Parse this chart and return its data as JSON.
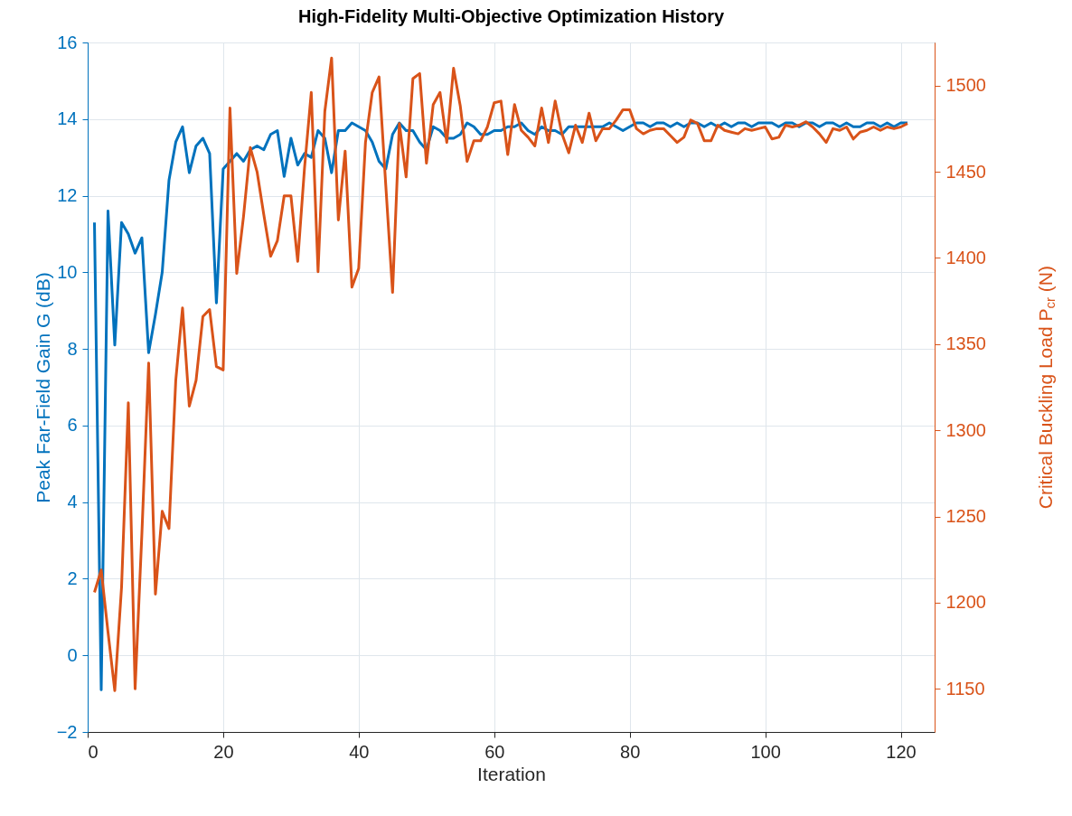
{
  "chart_data": {
    "type": "line",
    "title": "High-Fidelity Multi-Objective Optimization History",
    "xlabel": "Iteration",
    "ylabel": "Peak Far-Field Gain G (dB)",
    "y2label": "Critical Buckling Load P$_{cr}$ (N)",
    "x": [
      1,
      2,
      3,
      4,
      5,
      6,
      7,
      8,
      9,
      10,
      11,
      12,
      13,
      14,
      15,
      16,
      17,
      18,
      19,
      20,
      21,
      22,
      23,
      24,
      25,
      26,
      27,
      28,
      29,
      30,
      31,
      32,
      33,
      34,
      35,
      36,
      37,
      38,
      39,
      40,
      41,
      42,
      43,
      44,
      45,
      46,
      47,
      48,
      49,
      50,
      51,
      52,
      53,
      54,
      55,
      56,
      57,
      58,
      59,
      60,
      61,
      62,
      63,
      64,
      65,
      66,
      67,
      68,
      69,
      70,
      71,
      72,
      73,
      74,
      75,
      76,
      77,
      78,
      79,
      80,
      81,
      82,
      83,
      84,
      85,
      86,
      87,
      88,
      89,
      90,
      91,
      92,
      93,
      94,
      95,
      96,
      97,
      98,
      99,
      100,
      101,
      102,
      103,
      104,
      105,
      106,
      107,
      108,
      109,
      110,
      111,
      112,
      113,
      114,
      115,
      116,
      117,
      118,
      119,
      120,
      121
    ],
    "series": [
      {
        "color": "#0072bd",
        "values": [
          11.3,
          -0.9,
          11.6,
          8.1,
          11.3,
          11.0,
          10.5,
          10.9,
          7.9,
          8.9,
          10.0,
          12.4,
          13.4,
          13.8,
          12.6,
          13.3,
          13.5,
          13.1,
          9.2,
          12.7,
          12.9,
          13.1,
          12.9,
          13.2,
          13.3,
          13.2,
          13.6,
          13.7,
          12.5,
          13.5,
          12.8,
          13.1,
          13.0,
          13.7,
          13.5,
          12.6,
          13.7,
          13.7,
          13.9,
          13.8,
          13.7,
          13.4,
          12.9,
          12.7,
          13.6,
          13.9,
          13.7,
          13.7,
          13.4,
          13.2,
          13.8,
          13.7,
          13.5,
          13.5,
          13.6,
          13.9,
          13.8,
          13.6,
          13.6,
          13.7,
          13.7,
          13.8,
          13.8,
          13.9,
          13.7,
          13.6,
          13.8,
          13.7,
          13.7,
          13.6,
          13.8,
          13.8,
          13.8,
          13.8,
          13.8,
          13.8,
          13.9,
          13.8,
          13.7,
          13.8,
          13.9,
          13.9,
          13.8,
          13.9,
          13.9,
          13.8,
          13.9,
          13.8,
          13.9,
          13.9,
          13.8,
          13.9,
          13.8,
          13.9,
          13.8,
          13.9,
          13.9,
          13.8,
          13.9,
          13.9,
          13.9,
          13.8,
          13.9,
          13.9,
          13.8,
          13.9,
          13.9,
          13.8,
          13.9,
          13.9,
          13.8,
          13.9,
          13.8,
          13.8,
          13.9,
          13.9,
          13.8,
          13.9,
          13.8,
          13.9,
          13.9
        ]
      },
      {
        "color": "#d95319",
        "axis": "y2",
        "values": [
          1206,
          1219,
          1183,
          1149,
          1209,
          1316,
          1150,
          1240,
          1339,
          1205,
          1253,
          1243,
          1329,
          1371,
          1314,
          1329,
          1366,
          1370,
          1337,
          1335,
          1487,
          1391,
          1424,
          1464,
          1450,
          1425,
          1401,
          1410,
          1436,
          1436,
          1398,
          1452,
          1496,
          1392,
          1485,
          1516,
          1422,
          1462,
          1383,
          1394,
          1467,
          1496,
          1505,
          1442,
          1380,
          1478,
          1447,
          1504,
          1507,
          1455,
          1489,
          1496,
          1467,
          1510,
          1488,
          1456,
          1468,
          1468,
          1476,
          1490,
          1491,
          1460,
          1489,
          1474,
          1470,
          1465,
          1487,
          1467,
          1491,
          1472,
          1461,
          1477,
          1467,
          1484,
          1468,
          1475,
          1475,
          1480,
          1486,
          1486,
          1475,
          1472,
          1474,
          1475,
          1475,
          1471,
          1467,
          1470,
          1480,
          1478,
          1468,
          1468,
          1477,
          1474,
          1473,
          1472,
          1475,
          1474,
          1475,
          1476,
          1469,
          1470,
          1477,
          1476,
          1477,
          1479,
          1476,
          1472,
          1467,
          1475,
          1474,
          1476,
          1469,
          1473,
          1474,
          1476,
          1474,
          1476,
          1475,
          1476,
          1478
        ]
      }
    ],
    "xlim": [
      0,
      125
    ],
    "xticks": [
      0,
      20,
      40,
      60,
      80,
      100,
      120
    ],
    "ylim": [
      -2,
      16
    ],
    "yticks": [
      -2,
      0,
      2,
      4,
      6,
      8,
      10,
      12,
      14,
      16
    ],
    "y2lim": [
      1125,
      1525
    ],
    "y2ticks": [
      1150,
      1200,
      1250,
      1300,
      1350,
      1400,
      1450,
      1500
    ],
    "grid": true
  }
}
